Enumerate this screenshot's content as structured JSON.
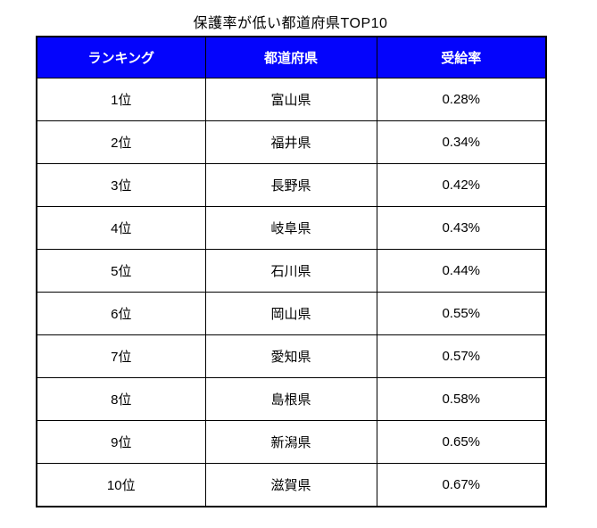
{
  "title": "保護率が低い都道府県TOP10",
  "colors": {
    "header_bg": "#0404fc",
    "header_text": "#ffffff",
    "cell_text": "#000000",
    "border": "#000000",
    "background": "#ffffff"
  },
  "chart_data": {
    "type": "table",
    "title": "保護率が低い都道府県TOP10",
    "columns": [
      "ランキング",
      "都道府県",
      "受給率"
    ],
    "rows": [
      [
        "1位",
        "富山県",
        "0.28%"
      ],
      [
        "2位",
        "福井県",
        "0.34%"
      ],
      [
        "3位",
        "長野県",
        "0.42%"
      ],
      [
        "4位",
        "岐阜県",
        "0.43%"
      ],
      [
        "5位",
        "石川県",
        "0.44%"
      ],
      [
        "6位",
        "岡山県",
        "0.55%"
      ],
      [
        "7位",
        "愛知県",
        "0.57%"
      ],
      [
        "8位",
        "島根県",
        "0.58%"
      ],
      [
        "9位",
        "新潟県",
        "0.65%"
      ],
      [
        "10位",
        "滋賀県",
        "0.67%"
      ]
    ]
  }
}
